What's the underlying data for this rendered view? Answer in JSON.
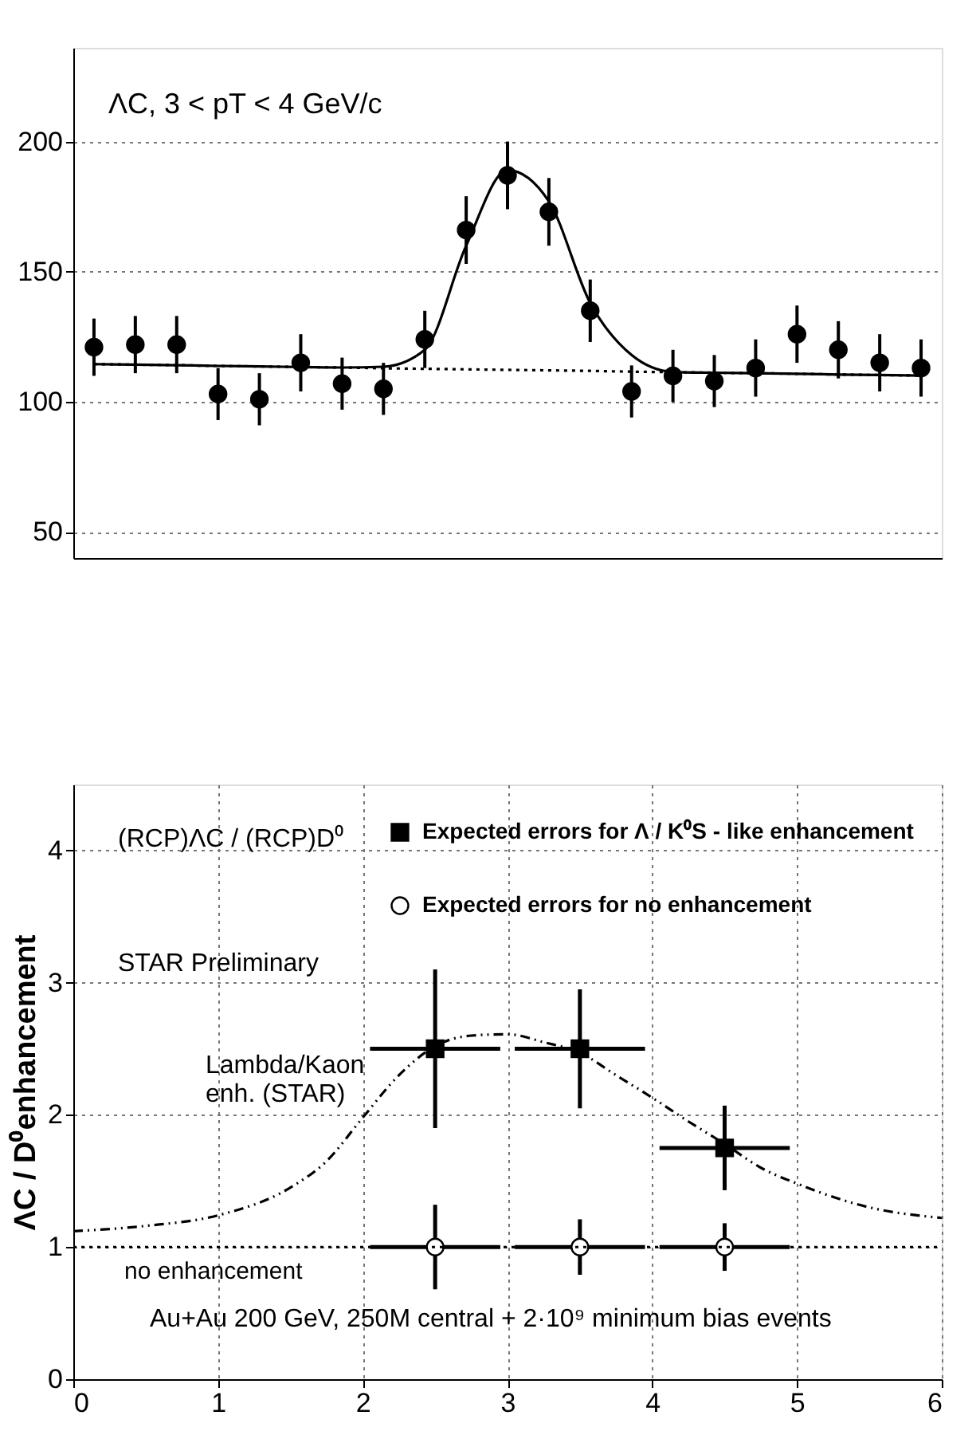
{
  "chart_data": [
    {
      "type": "scatter",
      "categories": [
        null,
        null,
        null,
        null,
        null,
        null,
        null,
        null,
        null,
        null,
        null,
        null,
        null,
        null,
        null,
        null,
        null,
        null,
        null,
        null,
        null
      ],
      "ylim": [
        40,
        236
      ],
      "yticks": [
        50,
        100,
        150,
        200
      ],
      "grid": "y",
      "tick_labels": "y",
      "annotations": [
        "ΛC, 3 < pT < 4 GeV/c"
      ],
      "series": [
        {
          "color": "#000000",
          "marker": "circle",
          "values": [
            121,
            122,
            122,
            103,
            101,
            115,
            107,
            105,
            124,
            166,
            187,
            173,
            135,
            104,
            110,
            108,
            113,
            126,
            120,
            115,
            113
          ],
          "errors": [
            11,
            11,
            11,
            10,
            10,
            11,
            10,
            10,
            11,
            13,
            13,
            13,
            12,
            10,
            10,
            10,
            11,
            11,
            11,
            11,
            11
          ]
        },
        {
          "type": "line",
          "color": "#000000",
          "marker": "none",
          "line_style": "solid",
          "values": [
            114.5,
            114.3,
            114.1,
            113.8,
            113.6,
            113.4,
            113.2,
            113.5,
            120,
            160,
            189,
            177,
            138,
            118,
            111.5,
            111.2,
            111,
            110.8,
            110.5,
            110.3,
            110.1
          ]
        },
        {
          "type": "line",
          "color": "#000000",
          "marker": "none",
          "line_style": "dotted",
          "values": [
            114.5,
            114.3,
            114.1,
            113.8,
            113.6,
            113.4,
            113.2,
            112.9,
            112.7,
            112.5,
            112.3,
            112.1,
            111.9,
            111.6,
            111.4,
            111.2,
            111,
            110.8,
            110.5,
            110.3,
            110.1
          ]
        }
      ]
    },
    {
      "type": "scatter",
      "xlim": [
        0,
        6
      ],
      "xticks": [
        0,
        1,
        2,
        3,
        4,
        5,
        6
      ],
      "ylim": [
        0,
        4.5
      ],
      "yticks": [
        0,
        1,
        2,
        3,
        4
      ],
      "ylabel": "ΛC / D⁰enhancement",
      "grid": true,
      "legend": "top right",
      "annotations": [
        "(RCP)ΛC / (RCP)D⁰",
        "STAR Preliminary",
        "Lambda/Kaon\nenh. (STAR)",
        "Au+Au 200 GeV, 250M central + 2·10⁹ minimum bias events"
      ],
      "ref_lines": [
        {
          "axis": "y",
          "value": 1,
          "label": "no enhancement",
          "line_style": "dotted",
          "color": "#000000"
        }
      ],
      "series": [
        {
          "name": "Expected errors for Λ / K⁰S - like enhancement",
          "marker": "square",
          "color": "#000000",
          "x": [
            2.5,
            3.5,
            4.5
          ],
          "values": [
            2.5,
            2.5,
            1.75
          ],
          "errors": [
            0.6,
            0.45,
            0.32
          ],
          "xerrors": [
            0.45,
            0.45,
            0.45
          ]
        },
        {
          "name": "Expected errors for no enhancement",
          "marker": "circle",
          "color": "#ffffff",
          "x": [
            2.5,
            3.5,
            4.5
          ],
          "values": [
            1,
            1,
            1
          ],
          "errors": [
            0.32,
            0.21,
            0.18
          ],
          "xerrors": [
            0.45,
            0.45,
            0.45
          ]
        },
        {
          "type": "line",
          "color": "#000000",
          "marker": "none",
          "line_style": "dashed",
          "x": [
            0,
            0.5,
            1,
            1.5,
            1.75,
            2,
            2.25,
            2.5,
            2.75,
            3,
            3.25,
            3.5,
            3.75,
            4,
            4.25,
            4.5,
            4.75,
            5,
            5.5,
            6
          ],
          "values": [
            1.12,
            1.16,
            1.24,
            1.45,
            1.65,
            1.98,
            2.3,
            2.52,
            2.6,
            2.61,
            2.55,
            2.47,
            2.3,
            2.13,
            1.95,
            1.78,
            1.6,
            1.48,
            1.3,
            1.22
          ]
        }
      ]
    }
  ]
}
